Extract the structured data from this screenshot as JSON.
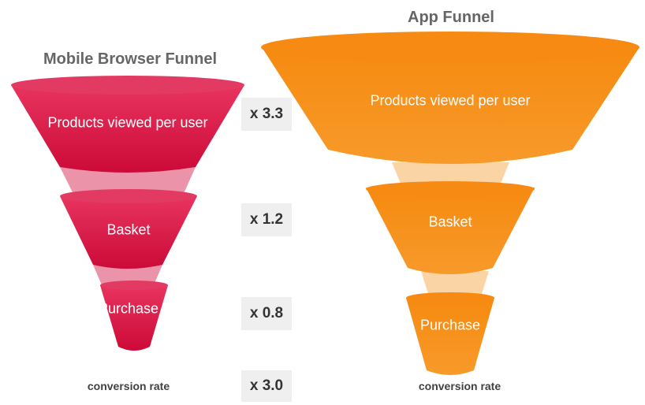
{
  "mobile": {
    "title": "Mobile Browser Funnel",
    "stages": [
      "Products viewed per user",
      "Basket",
      "Purchase"
    ],
    "conversion_label": "conversion rate",
    "colors": {
      "main": "#d20a3a",
      "light": "#eb93a9",
      "top": "#e02f58"
    }
  },
  "app": {
    "title": "App Funnel",
    "stages": [
      "Products viewed per user",
      "Basket",
      "Purchase"
    ],
    "conversion_label": "conversion rate",
    "colors": {
      "main": "#f5880f",
      "light": "#fbd4a5",
      "top": "#f89a25"
    }
  },
  "multipliers": [
    "x 3.3",
    "x 1.2",
    "x 0.8",
    "x 3.0"
  ]
}
